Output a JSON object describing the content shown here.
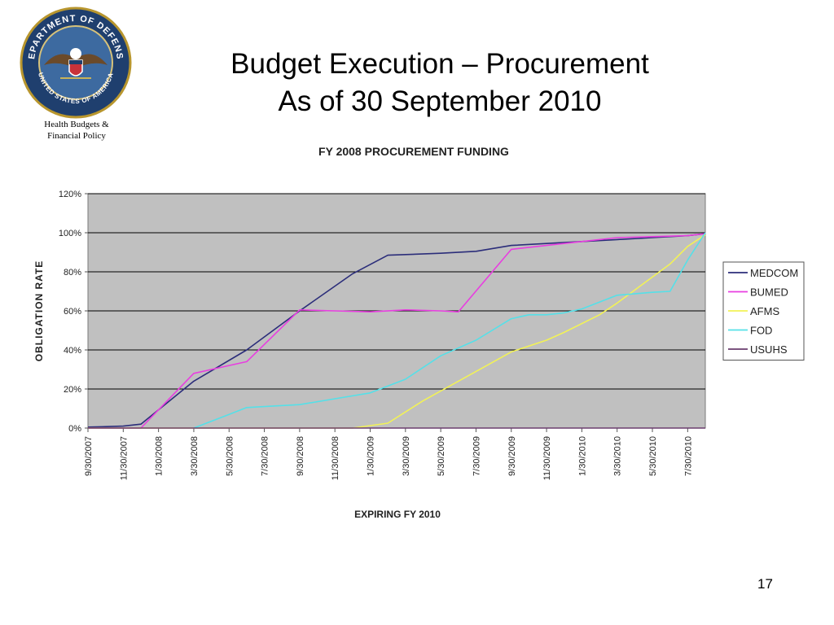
{
  "slide": {
    "title_line1": "Budget Execution – Procurement",
    "title_line2": "As of 30 September 2010",
    "org_line1": "Health Budgets  &",
    "org_line2": "Financial Policy",
    "page_number": "17",
    "seal_text_top": "DEPARTMENT OF DEFENSE",
    "seal_text_bottom": "UNITED STATES OF AMERICA"
  },
  "chart_data": {
    "type": "line",
    "title": "FY 2008 PROCUREMENT FUNDING",
    "xlabel": "EXPIRING FY 2010",
    "ylabel": "OBLIGATION RATE",
    "categories": [
      "9/30/2007",
      "11/30/2007",
      "1/30/2008",
      "3/30/2008",
      "5/30/2008",
      "7/30/2008",
      "9/30/2008",
      "11/30/2008",
      "1/30/2009",
      "3/30/2009",
      "5/30/2009",
      "7/30/2009",
      "9/30/2009",
      "11/30/2009",
      "1/30/2010",
      "3/30/2010",
      "5/30/2010",
      "7/30/2010"
    ],
    "y_ticks": [
      "0%",
      "20%",
      "40%",
      "60%",
      "80%",
      "100%",
      "120%"
    ],
    "ylim": [
      0,
      120
    ],
    "grid": "horizontal",
    "legend_position": "right",
    "plot_background": "#c0c0c0",
    "series": [
      {
        "name": "MEDCOM",
        "color": "#2b2d7a",
        "points": [
          [
            0,
            0.5
          ],
          [
            1,
            1
          ],
          [
            1.5,
            2
          ],
          [
            3,
            24
          ],
          [
            4.5,
            40
          ],
          [
            6,
            60
          ],
          [
            7.5,
            79
          ],
          [
            8.5,
            88.5
          ],
          [
            10,
            89.5
          ],
          [
            11,
            90.5
          ],
          [
            12,
            93.5
          ],
          [
            13,
            94.5
          ],
          [
            14,
            95.5
          ],
          [
            15,
            96.5
          ],
          [
            16,
            97.5
          ],
          [
            17,
            98.5
          ],
          [
            17.5,
            99.5
          ]
        ]
      },
      {
        "name": "BUMED",
        "color": "#e83ee0",
        "points": [
          [
            0,
            0
          ],
          [
            1,
            0
          ],
          [
            1.5,
            0
          ],
          [
            3,
            28
          ],
          [
            4.5,
            34
          ],
          [
            6,
            60.5
          ],
          [
            7,
            60
          ],
          [
            8,
            59.5
          ],
          [
            9,
            60.5
          ],
          [
            10,
            60
          ],
          [
            10.5,
            59.5
          ],
          [
            12,
            91.5
          ],
          [
            13,
            93.5
          ],
          [
            14,
            95.5
          ],
          [
            15,
            97.5
          ],
          [
            16,
            98
          ],
          [
            17,
            98.5
          ],
          [
            17.5,
            99.5
          ]
        ]
      },
      {
        "name": "AFMS",
        "color": "#f2f256",
        "points": [
          [
            0,
            0
          ],
          [
            7.5,
            0
          ],
          [
            8.5,
            2.5
          ],
          [
            9.5,
            14
          ],
          [
            10.5,
            24
          ],
          [
            12,
            39
          ],
          [
            13,
            45
          ],
          [
            13.5,
            49
          ],
          [
            14.5,
            58
          ],
          [
            15,
            64
          ],
          [
            16.5,
            84
          ],
          [
            17,
            93
          ],
          [
            17.5,
            99
          ]
        ]
      },
      {
        "name": "FOD",
        "color": "#55e0e8",
        "points": [
          [
            3,
            0
          ],
          [
            4,
            7
          ],
          [
            4.5,
            10.5
          ],
          [
            5,
            11
          ],
          [
            6,
            12
          ],
          [
            7,
            15
          ],
          [
            8,
            18
          ],
          [
            9,
            25
          ],
          [
            10,
            37
          ],
          [
            11,
            45
          ],
          [
            12,
            56
          ],
          [
            12.5,
            58
          ],
          [
            13,
            58
          ],
          [
            13.5,
            59
          ],
          [
            14,
            61
          ],
          [
            15,
            68
          ],
          [
            16,
            69.5
          ],
          [
            16.5,
            70
          ],
          [
            17,
            86
          ],
          [
            17.5,
            100
          ]
        ]
      },
      {
        "name": "USUHS",
        "color": "#6a3d6e",
        "points": [
          [
            0,
            0
          ],
          [
            17.5,
            0
          ]
        ]
      }
    ]
  }
}
